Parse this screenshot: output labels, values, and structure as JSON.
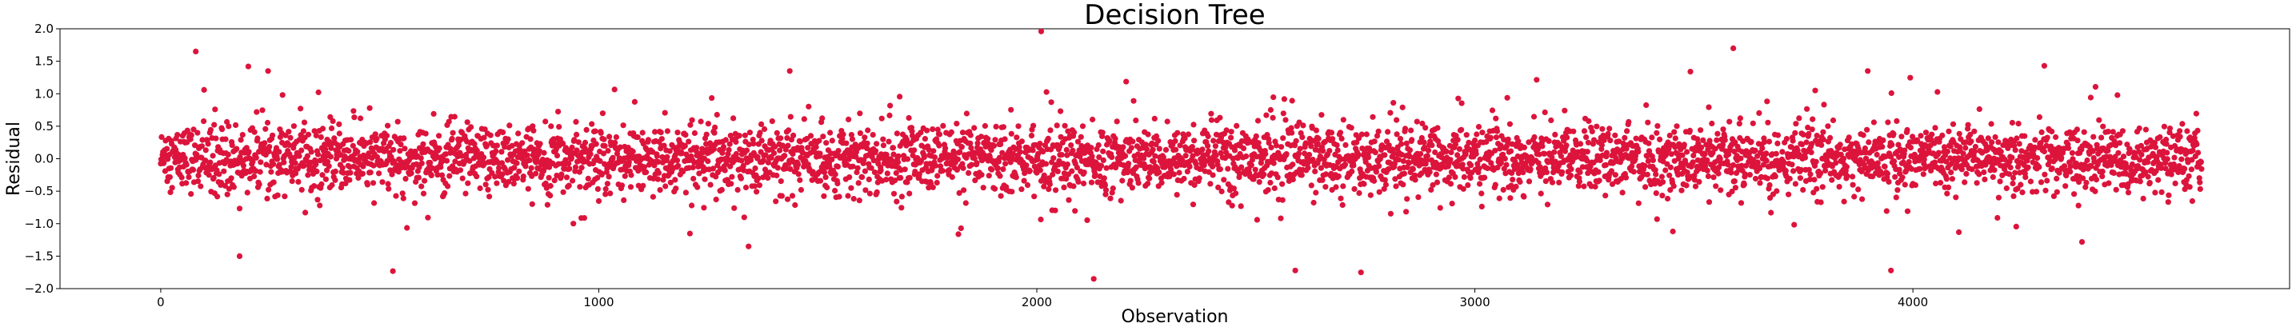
{
  "chart_data": {
    "type": "scatter",
    "title": "Decision Tree",
    "xlabel": "Observation",
    "ylabel": "Residual",
    "xlim": [
      -230,
      4860
    ],
    "ylim": [
      -2.0,
      2.0
    ],
    "xticks": [
      0,
      1000,
      2000,
      3000,
      4000
    ],
    "xtick_labels": [
      "0",
      "1000",
      "2000",
      "3000",
      "4000"
    ],
    "yticks": [
      -2.0,
      -1.5,
      -1.0,
      -0.5,
      0.0,
      0.5,
      1.0,
      1.5,
      2.0
    ],
    "ytick_labels": [
      "−2.0",
      "−1.5",
      "−1.0",
      "−0.5",
      "0.0",
      "0.5",
      "1.0",
      "1.5",
      "2.0"
    ],
    "grid": false,
    "marker_color": "#dc143c",
    "n_points": 4660,
    "x_range": [
      0,
      4659
    ],
    "noted_extremes": [
      {
        "x": 80,
        "y": 1.65
      },
      {
        "x": 200,
        "y": 1.42
      },
      {
        "x": 180,
        "y": -1.5
      },
      {
        "x": 530,
        "y": -1.73
      },
      {
        "x": 2010,
        "y": 1.96
      },
      {
        "x": 2130,
        "y": -1.85
      },
      {
        "x": 2590,
        "y": -1.72
      },
      {
        "x": 2740,
        "y": -1.75
      },
      {
        "x": 3590,
        "y": 1.7
      },
      {
        "x": 3950,
        "y": -1.72
      },
      {
        "x": 4300,
        "y": 1.43
      }
    ]
  }
}
